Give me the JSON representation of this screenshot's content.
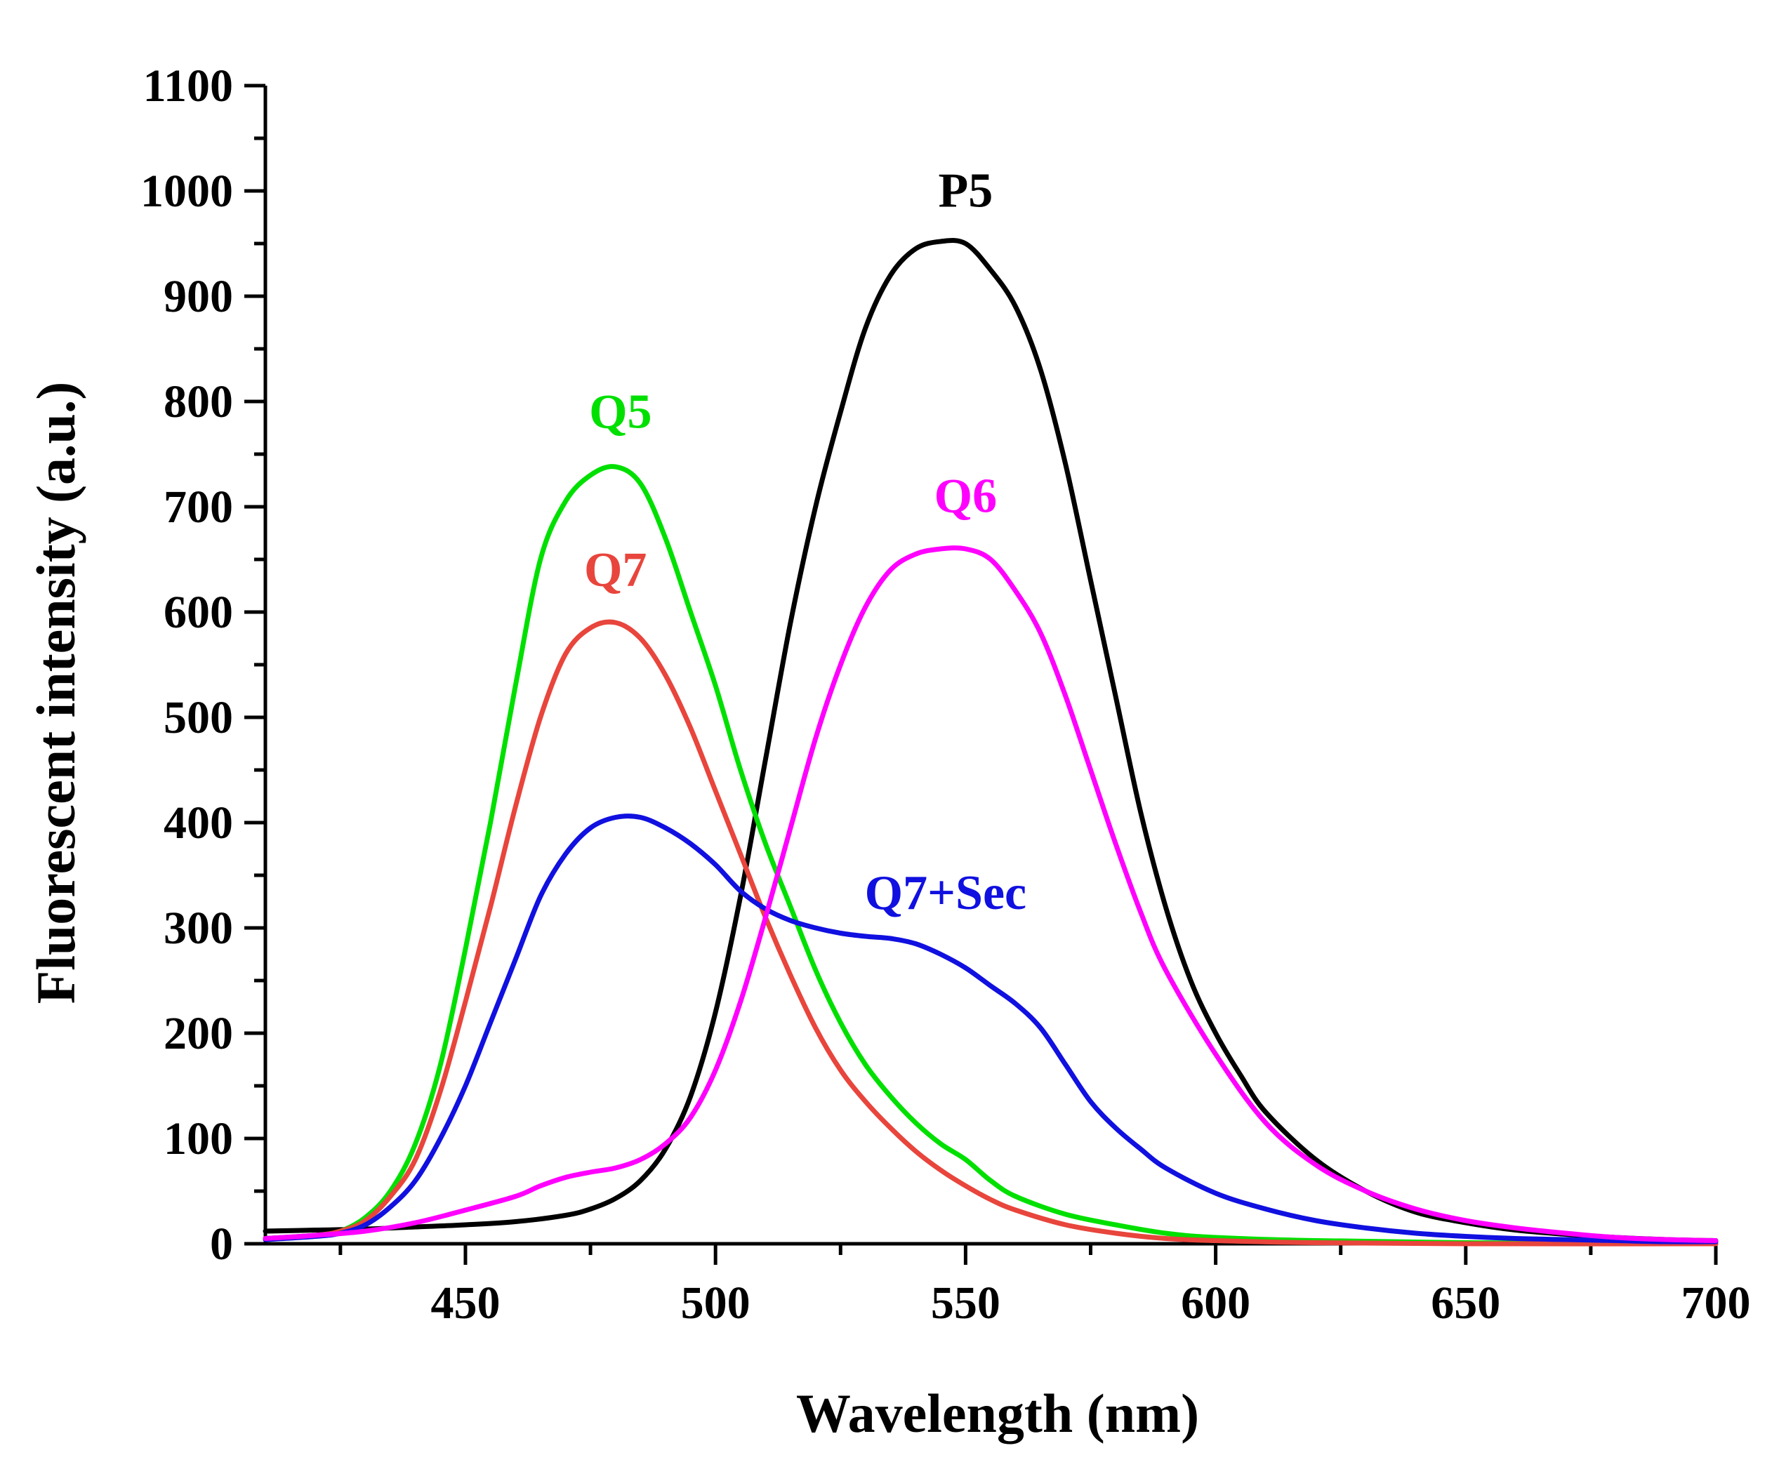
{
  "chart_data": {
    "type": "line",
    "title": "",
    "xlabel": "Wavelength (nm)",
    "ylabel": "Fluorescent intensity (a.u.)",
    "xlim": [
      410,
      700
    ],
    "ylim": [
      0,
      1100
    ],
    "x_ticks": [
      450,
      500,
      550,
      600,
      650,
      700
    ],
    "y_ticks": [
      0,
      100,
      200,
      300,
      400,
      500,
      600,
      700,
      800,
      900,
      1000,
      1100
    ],
    "grid": false,
    "legend": "none (inline labels near curves)",
    "series": [
      {
        "name": "P5",
        "color": "#000000",
        "label": "P5",
        "x": [
          410,
          420,
          430,
          440,
          450,
          460,
          470,
          475,
          480,
          485,
          490,
          495,
          500,
          505,
          510,
          515,
          520,
          525,
          530,
          535,
          540,
          545,
          550,
          555,
          560,
          565,
          570,
          575,
          580,
          585,
          590,
          595,
          600,
          605,
          610,
          620,
          630,
          640,
          650,
          660,
          670,
          680,
          690,
          700
        ],
        "y": [
          12,
          13,
          14,
          16,
          18,
          21,
          27,
          33,
          43,
          60,
          90,
          140,
          220,
          330,
          460,
          590,
          700,
          790,
          870,
          920,
          945,
          952,
          950,
          925,
          890,
          830,
          740,
          630,
          520,
          410,
          320,
          250,
          200,
          160,
          125,
          80,
          50,
          30,
          20,
          13,
          9,
          6,
          4,
          3
        ]
      },
      {
        "name": "Q5",
        "color": "#00e000",
        "label": "Q5",
        "x": [
          410,
          420,
          425,
          430,
          435,
          440,
          445,
          450,
          455,
          460,
          465,
          470,
          475,
          480,
          485,
          490,
          495,
          500,
          505,
          510,
          515,
          520,
          525,
          530,
          535,
          540,
          545,
          550,
          555,
          560,
          570,
          580,
          590,
          600,
          620,
          650,
          700
        ],
        "y": [
          5,
          8,
          12,
          25,
          50,
          95,
          170,
          280,
          400,
          530,
          650,
          705,
          730,
          738,
          722,
          670,
          600,
          530,
          450,
          380,
          320,
          260,
          210,
          170,
          140,
          115,
          95,
          80,
          60,
          45,
          28,
          18,
          10,
          6,
          3,
          1,
          0
        ]
      },
      {
        "name": "Q7",
        "color": "#e8453c",
        "label": "Q7",
        "x": [
          410,
          420,
          425,
          430,
          435,
          440,
          445,
          450,
          455,
          460,
          465,
          470,
          475,
          480,
          485,
          490,
          495,
          500,
          505,
          510,
          515,
          520,
          525,
          530,
          535,
          540,
          545,
          550,
          555,
          560,
          570,
          580,
          590,
          600,
          620,
          650,
          700
        ],
        "y": [
          5,
          8,
          12,
          22,
          45,
          80,
          145,
          230,
          320,
          415,
          500,
          560,
          585,
          590,
          575,
          540,
          490,
          430,
          370,
          310,
          255,
          205,
          165,
          135,
          110,
          88,
          70,
          55,
          42,
          32,
          18,
          10,
          5,
          3,
          1,
          0,
          0
        ]
      },
      {
        "name": "Q7+Sec",
        "color": "#1010e0",
        "label": "Q7+Sec",
        "x": [
          410,
          420,
          425,
          430,
          435,
          440,
          445,
          450,
          455,
          460,
          465,
          470,
          475,
          480,
          485,
          490,
          495,
          500,
          505,
          510,
          515,
          520,
          525,
          530,
          535,
          540,
          545,
          550,
          555,
          560,
          565,
          570,
          575,
          580,
          585,
          590,
          600,
          610,
          620,
          630,
          640,
          650,
          660,
          670,
          680,
          690,
          700
        ],
        "y": [
          4,
          7,
          10,
          18,
          35,
          60,
          100,
          150,
          210,
          270,
          330,
          370,
          395,
          405,
          405,
          395,
          380,
          360,
          335,
          318,
          307,
          300,
          295,
          292,
          290,
          285,
          275,
          262,
          245,
          228,
          205,
          170,
          135,
          110,
          90,
          72,
          48,
          33,
          22,
          15,
          10,
          7,
          5,
          4,
          3,
          2,
          2
        ]
      },
      {
        "name": "Q6",
        "color": "#ff00ff",
        "label": "Q6",
        "x": [
          410,
          420,
          430,
          440,
          450,
          460,
          465,
          470,
          475,
          480,
          485,
          490,
          495,
          500,
          505,
          510,
          515,
          520,
          525,
          530,
          535,
          540,
          545,
          550,
          555,
          560,
          565,
          570,
          575,
          580,
          585,
          590,
          600,
          610,
          620,
          630,
          640,
          650,
          660,
          670,
          680,
          690,
          700
        ],
        "y": [
          5,
          8,
          12,
          20,
          32,
          45,
          55,
          63,
          68,
          72,
          80,
          95,
          120,
          165,
          230,
          310,
          395,
          480,
          550,
          605,
          640,
          655,
          660,
          660,
          650,
          620,
          580,
          520,
          450,
          380,
          315,
          260,
          180,
          115,
          75,
          50,
          33,
          22,
          15,
          10,
          6,
          4,
          3
        ]
      }
    ]
  }
}
